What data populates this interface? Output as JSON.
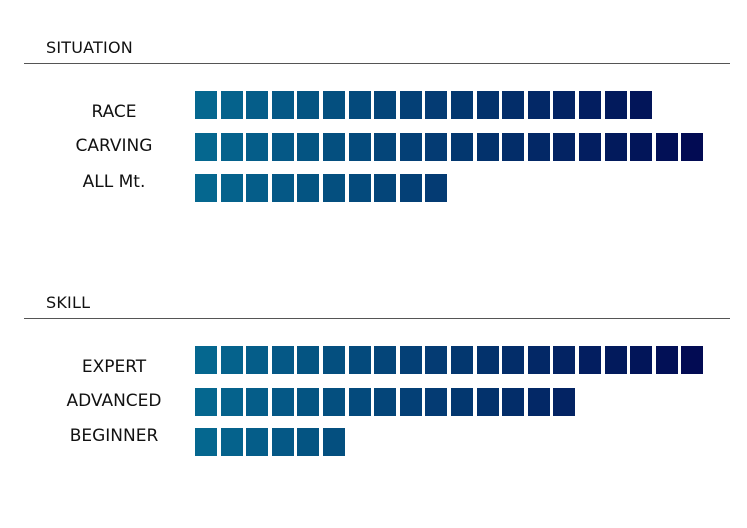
{
  "chart_data": [
    {
      "type": "bar",
      "title": "SITUATION",
      "unit_max": 20,
      "categories": [
        "RACE",
        "CARVING",
        "ALL Mt."
      ],
      "values": [
        18,
        20,
        10
      ]
    },
    {
      "type": "bar",
      "title": "SKILL",
      "unit_max": 20,
      "categories": [
        "EXPERT",
        "ADVANCED",
        "BEGINNER"
      ],
      "values": [
        20,
        15,
        6
      ]
    }
  ],
  "colors": {
    "gradient_start": "#05678f",
    "gradient_end": "#020b53",
    "rule": "#555555"
  }
}
